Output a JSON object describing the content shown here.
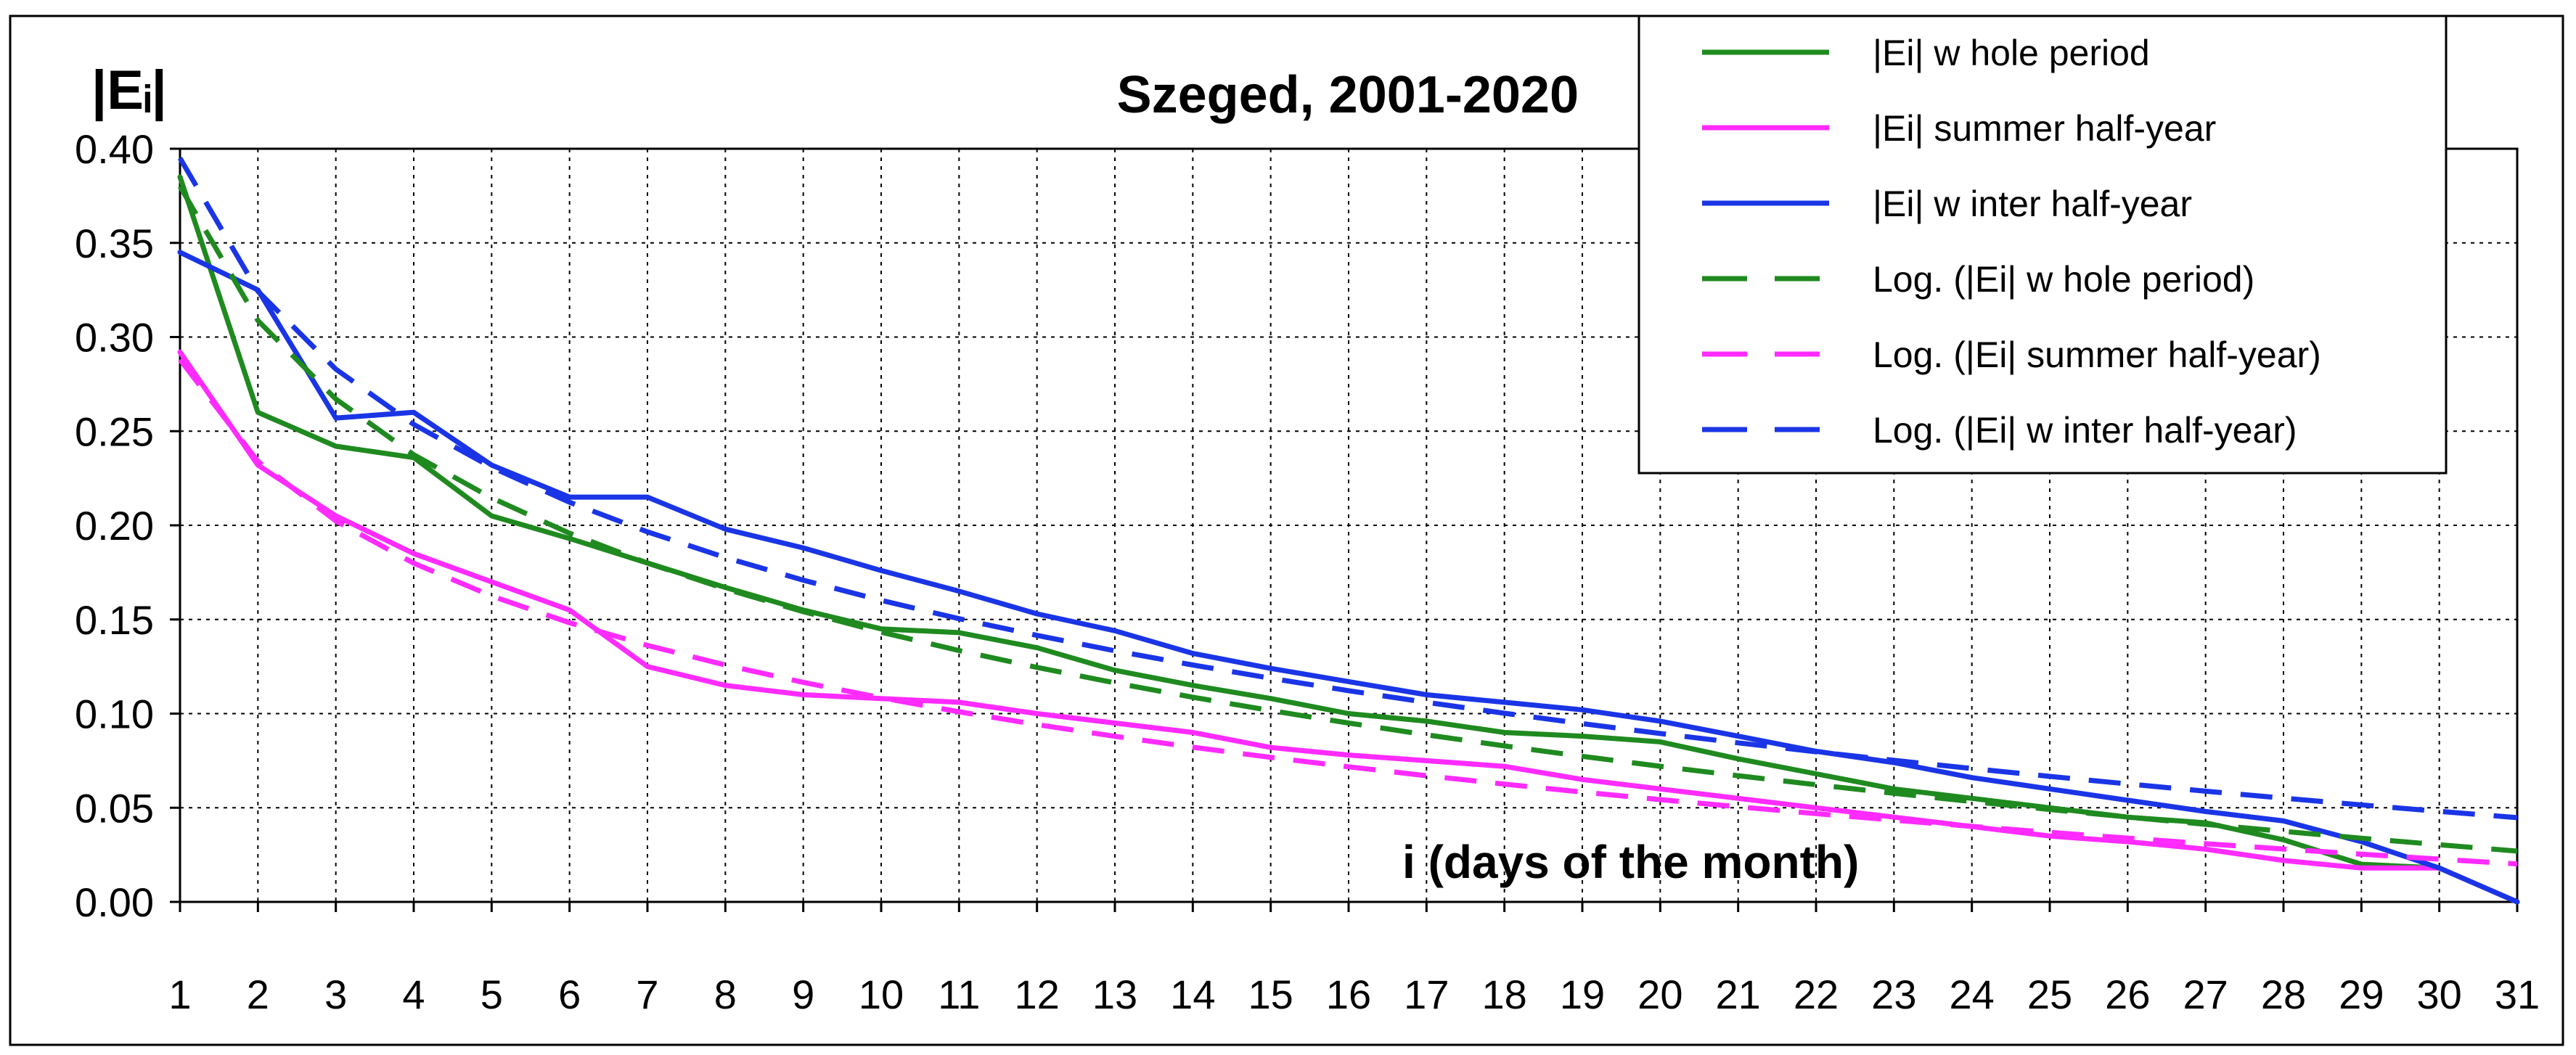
{
  "chart_data": {
    "type": "line",
    "title": "Szeged, 2001-2020",
    "ylabel": "|Eᵢ|",
    "xlabel": "i (days of the month)",
    "ylim": [
      0,
      0.4
    ],
    "yticks": [
      "0.00",
      "0.05",
      "0.10",
      "0.15",
      "0.20",
      "0.25",
      "0.30",
      "0.35",
      "0.40"
    ],
    "x": [
      1,
      2,
      3,
      4,
      5,
      6,
      7,
      8,
      9,
      10,
      11,
      12,
      13,
      14,
      15,
      16,
      17,
      18,
      19,
      20,
      21,
      22,
      23,
      24,
      25,
      26,
      27,
      28,
      29,
      30,
      31
    ],
    "legend_position": "top-right",
    "grid": true,
    "series": [
      {
        "name": "|Ei| w hole period",
        "color": "#1f8a1f",
        "dashed": false,
        "values": [
          0.385,
          0.26,
          0.242,
          0.236,
          0.205,
          0.193,
          0.18,
          0.167,
          0.155,
          0.145,
          0.143,
          0.135,
          0.123,
          0.115,
          0.108,
          0.1,
          0.096,
          0.09,
          0.088,
          0.085,
          0.076,
          0.068,
          0.06,
          0.055,
          0.05,
          0.045,
          0.042,
          0.033,
          0.02,
          0.018,
          0.0
        ]
      },
      {
        "name": "|Ei| summer half-year",
        "color": "#ff2bff",
        "dashed": false,
        "values": [
          0.292,
          0.232,
          0.205,
          0.185,
          0.17,
          0.155,
          0.125,
          0.115,
          0.11,
          0.108,
          0.106,
          0.1,
          0.095,
          0.09,
          0.082,
          0.078,
          0.075,
          0.072,
          0.065,
          0.06,
          0.055,
          0.05,
          0.045,
          0.04,
          0.035,
          0.032,
          0.028,
          0.022,
          0.018,
          0.018,
          0.0
        ]
      },
      {
        "name": "|Ei| w inter half-year",
        "color": "#1a35e6",
        "dashed": false,
        "values": [
          0.345,
          0.325,
          0.257,
          0.26,
          0.232,
          0.215,
          0.215,
          0.198,
          0.188,
          0.176,
          0.165,
          0.153,
          0.144,
          0.132,
          0.124,
          0.117,
          0.11,
          0.106,
          0.102,
          0.096,
          0.088,
          0.08,
          0.074,
          0.066,
          0.06,
          0.054,
          0.048,
          0.043,
          0.032,
          0.018,
          0.0
        ]
      },
      {
        "name": "Log. (|Ei| w hole period)",
        "color": "#1f8a1f",
        "dashed": true,
        "log_fit": {
          "a": 0.38,
          "b": 0.1028
        }
      },
      {
        "name": "Log. (|Ei| summer half-year)",
        "color": "#ff2bff",
        "dashed": true,
        "log_fit": {
          "a": 0.288,
          "b": 0.078
        }
      },
      {
        "name": "Log. (|Ei| w inter half-year)",
        "color": "#1a35e6",
        "dashed": true,
        "log_fit": {
          "a": 0.395,
          "b": 0.102
        }
      }
    ]
  }
}
